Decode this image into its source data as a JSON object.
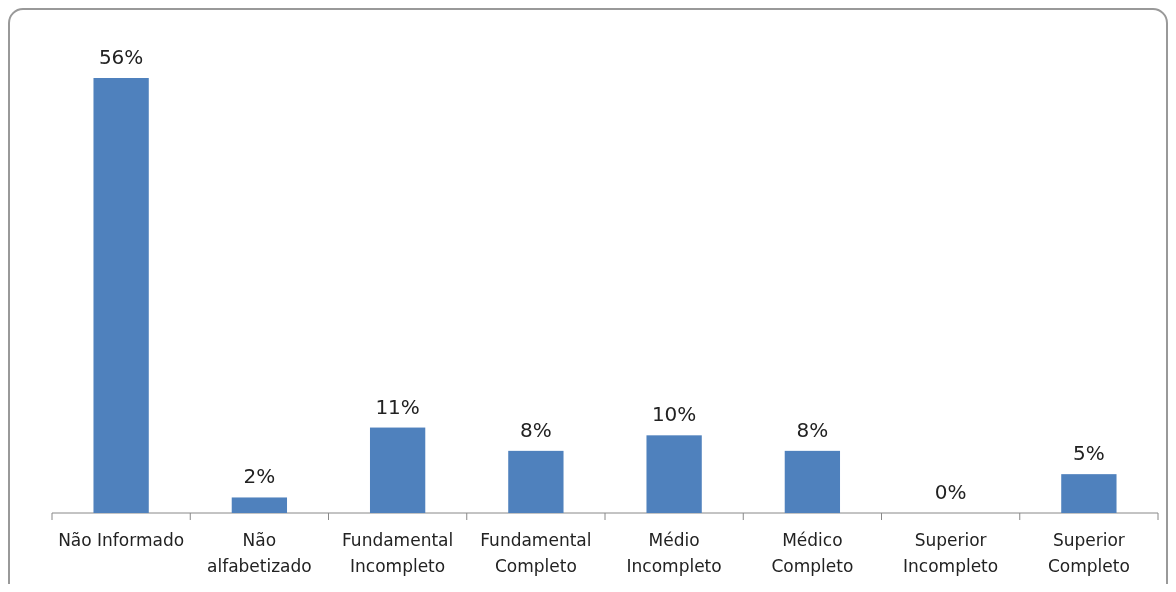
{
  "chart_data": {
    "type": "bar",
    "categories": [
      "Não Informado",
      "Não\nalfabetizado",
      "Fundamental\nIncompleto",
      "Fundamental\nCompleto",
      "Médio\nIncompleto",
      "Médico\nCompleto",
      "Superior\nIncompleto",
      "Superior\nCompleto"
    ],
    "values": [
      56,
      2,
      11,
      8,
      10,
      8,
      0,
      5
    ],
    "value_labels": [
      "56%",
      "2%",
      "11%",
      "8%",
      "10%",
      "8%",
      "0%",
      "5%"
    ],
    "color": "#4f81bd"
  }
}
